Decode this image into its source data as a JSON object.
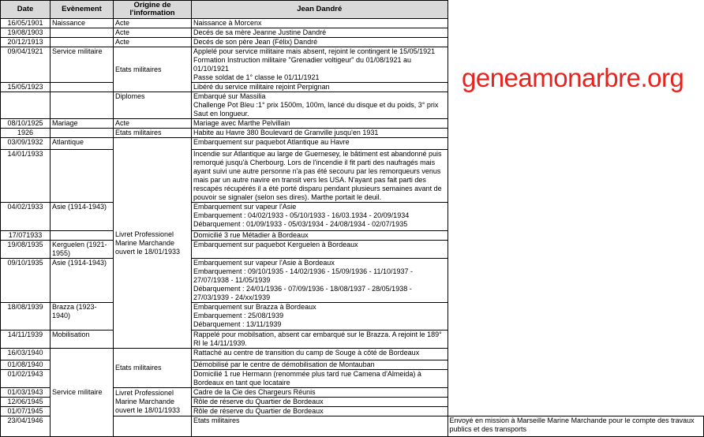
{
  "headers": {
    "date": "Date",
    "event": "Evènement",
    "origin": "Origine de l'information",
    "person": "Jean Dandré"
  },
  "watermark": "geneamonarbre.org",
  "colors": {
    "header_bg": "#d9d9d9",
    "watermark": "#e8231f"
  },
  "origins": [
    "Acte",
    "Acte",
    "Acte",
    "Etats militaires",
    "Diplomes",
    "Acte",
    "Etats militaires",
    "Livret Professionel Marine Marchande ouvert le 18/01/1933",
    "Etats militaires",
    "Livret Professionel Marine Marchande ouvert le 18/01/1933",
    "Etats militaires"
  ],
  "rows": [
    {
      "date": "16/05/1901",
      "event": "Naissance",
      "text": [
        "Naissance à Morcenx"
      ]
    },
    {
      "date": "19/08/1903",
      "event": "",
      "text": [
        "Decés de sa mère Jeanne Justine Dandré"
      ]
    },
    {
      "date": "20/12/1913",
      "event": "",
      "text": [
        "Decés de son père Jean (Félix) Dandré"
      ]
    },
    {
      "date": "09/04/1921",
      "event": "Service militaire",
      "text": [
        "Applelé pour service militaire mais absent, rejoint le contingent le 15/05/1921",
        "Formation Instruction militaire \"Grenadier voltigeur\" du 01/08/1921 au 01/10/1921",
        "Passe soldat de 1° classe le 01/11/1921"
      ]
    },
    {
      "date": "15/05/1923",
      "event": "",
      "text": [
        "Libéré du service militaire rejoint Perpignan"
      ]
    },
    {
      "date": "",
      "event": "",
      "text": [
        "Embarqué sur Massilia",
        "Challenge Pot Bleu :1° prix 1500m, 100m, lancé du disque et du poids, 3° prix Saut en longueur."
      ]
    },
    {
      "date": "08/10/1925",
      "event": "Mariage",
      "text": [
        "Mariage avec Marthe Pelvillain"
      ]
    },
    {
      "date": "1926",
      "event": "",
      "text": [
        "Habite au Havre 380 Boulevard de Granville jusqu'en 1931"
      ]
    },
    {
      "date": "03/09/1932",
      "event": "Atlantique",
      "text": [
        "Embarquement sur paquebot Atlantique au Havre"
      ]
    },
    {
      "date": "14/01/1933",
      "event": "",
      "text": [
        "Incendie sur Atlantique au large de Guernesey, le bâtiment est abandonné puis remorqué jusqu'à Cherbourg. Lors de l'incendie il fit parti des naufragés mais ayant suivi une autre personne n'a pas été secouru par les remorqueurs venus mais par un autre navire en transit vers les USA. N'ayant pas fait parti des rescapés récupérés il a été porté disparu pendant plusieurs semaines avant de pouvoir se signaler (selon ses dires). Marthe portait le deuil."
      ]
    },
    {
      "date": "04/02/1933",
      "event": "Asie (1914-1943)",
      "text": [
        "Embarquement sur vapeur l'Asie",
        "Embarquement : 04/02/1933 - 05/10/1933 - 16/03.1934 - 20/09/1934",
        "Débarquement : 01/09/1933 - 05/03/1934 - 24/08/1934 - 02/07/1935"
      ]
    },
    {
      "date": "17/071933",
      "event": "",
      "text": [
        "Domicilié 3 rue Métadier à Bordeaux"
      ]
    },
    {
      "date": "19/08/1935",
      "event": "Kerguelen (1921-1955)",
      "text": [
        "Embarquement sur paquebot Kerguelen à Bordeaux"
      ]
    },
    {
      "date": "09/10/1935",
      "event": "Asie (1914-1943)",
      "text": [
        "Embarquement sur vapeur l'Asie à Bordeaux",
        "Embarquement : 09/10/1935 - 14/02/1936 - 15/09/1936 - 11/10/1937 - 27/07/1938 - 11/05/1939",
        "Débarquement : 24/01/1936 - 07/09/1936 - 18/08/1937 - 28/05/1938 - 27/03/1939 - 24/xx/1939"
      ]
    },
    {
      "date": "18/08/1939",
      "event": "Brazza (1923-1940)",
      "text": [
        "Embarquement sur Brazza à Bordeaux",
        "Embarquement : 25/08/1939",
        "Débarquement : 13/11/1939"
      ]
    },
    {
      "date": "14/11/1939",
      "event": "Mobilisation",
      "text": [
        "Rappelé pour mobilsation, absent car embarqué sur le Brazza. A rejoint le 189° RI le 14/11/1939."
      ]
    },
    {
      "date": "16/03/1940",
      "event": "Service militaire",
      "text": [
        "Rattaché au centre de transition du camp de Souge à côté de Bordeaux"
      ]
    },
    {
      "date": "01/08/1940",
      "event": "",
      "text": [
        "Démobilisé par le centre de démobilisation de Montauban"
      ]
    },
    {
      "date": "01/02/1943",
      "event": "",
      "text": [
        "Domicilié 1 rue Hermann (renommée plus tard rue Camena d'Almeida) à Bordeaux en tant que locataire"
      ]
    },
    {
      "date": "01/03/1943",
      "event": "",
      "text": [
        "Cadre de la Cie des Chargeurs Réunis"
      ]
    },
    {
      "date": "12/06/1945",
      "event": "",
      "text": [
        "Rôle de réserve du Quartier de Bordeaux"
      ]
    },
    {
      "date": "01/07/1945",
      "event": "",
      "text": [
        "Rôle de réserve du Quartier de Bordeaux"
      ]
    },
    {
      "date": "23/04/1946",
      "event": "",
      "text": [
        "Envoyé en mission à Marseille Marine Marchande pour le compte des travaux publics et des transports"
      ]
    }
  ]
}
